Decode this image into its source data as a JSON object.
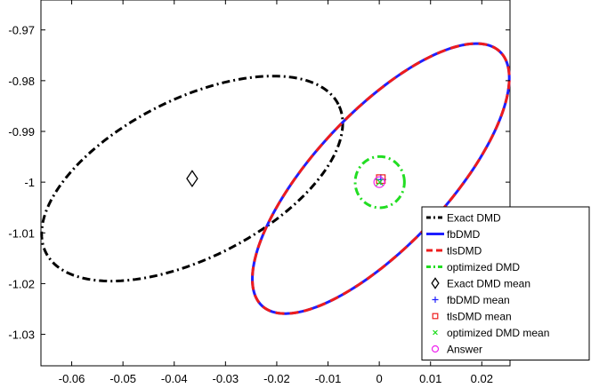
{
  "chart_data": {
    "type": "line",
    "title": "",
    "xlabel": "",
    "ylabel": "",
    "xlim": [
      -0.066,
      0.0255
    ],
    "ylim": [
      -1.0362,
      -0.9641
    ],
    "xticks": [
      -0.06,
      -0.05,
      -0.04,
      -0.03,
      -0.02,
      -0.01,
      0,
      0.01,
      0.02
    ],
    "xtick_labels": [
      "-0.06",
      "-0.05",
      "-0.04",
      "-0.03",
      "-0.02",
      "-0.01",
      "0",
      "0.01",
      "0.02"
    ],
    "yticks": [
      -0.97,
      -0.98,
      -0.99,
      -1.0,
      -1.01,
      -1.02,
      -1.03
    ],
    "ytick_labels": [
      "-0.97",
      "-0.98",
      "-0.99",
      "-1",
      "-1.01",
      "-1.02",
      "-1.03"
    ],
    "grid": false,
    "legend_position": "bottom-right",
    "series": [
      {
        "name": "Exact DMD",
        "kind": "ellipse",
        "center": [
          -0.0365,
          -0.9993
        ],
        "semi_axes": [
          0.032,
          0.0155
        ],
        "rotation_deg": 27,
        "color": "#000000",
        "dash": "dashdot"
      },
      {
        "name": "fbDMD",
        "kind": "ellipse",
        "center": [
          0.0003,
          -0.9993
        ],
        "semi_axes": [
          0.034,
          0.013
        ],
        "rotation_deg": 47,
        "color": "#1f1fff",
        "dash": "solid"
      },
      {
        "name": "tlsDMD",
        "kind": "ellipse",
        "center": [
          0.0003,
          -0.9993
        ],
        "semi_axes": [
          0.034,
          0.013
        ],
        "rotation_deg": 47,
        "color": "#ee1c1c",
        "dash": "dashed"
      },
      {
        "name": "optimized DMD",
        "kind": "ellipse",
        "center": [
          0.0001,
          -1.0
        ],
        "semi_axes": [
          0.0048,
          0.005
        ],
        "rotation_deg": 0,
        "color": "#22dd22",
        "dash": "dashdot"
      },
      {
        "name": "Exact DMD mean",
        "kind": "point",
        "x": -0.0365,
        "y": -0.9993,
        "marker": "diamond",
        "color": "#000000"
      },
      {
        "name": "fbDMD mean",
        "kind": "point",
        "x": 0.0003,
        "y": -0.9995,
        "marker": "plus",
        "color": "#1f1fff"
      },
      {
        "name": "tlsDMD mean",
        "kind": "point",
        "x": 0.0003,
        "y": -0.9994,
        "marker": "square",
        "color": "#ee1c1c"
      },
      {
        "name": "optimized DMD mean",
        "kind": "point",
        "x": 0.0001,
        "y": -1.0,
        "marker": "x",
        "color": "#22dd22"
      },
      {
        "name": "Answer",
        "kind": "point",
        "x": 0,
        "y": -1.0,
        "marker": "circle",
        "color": "#ee22ee"
      }
    ]
  }
}
